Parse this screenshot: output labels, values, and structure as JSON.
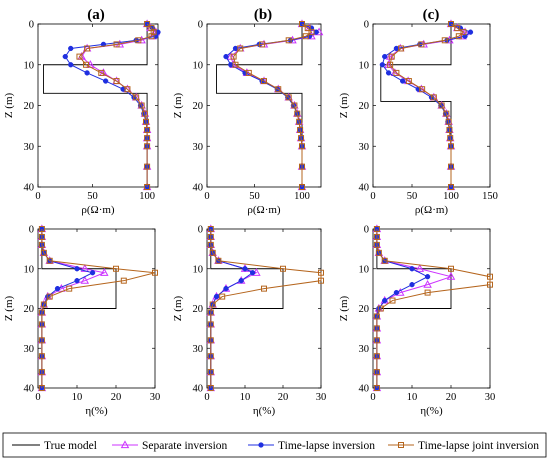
{
  "figure": {
    "panel_titles": [
      "(a)",
      "(b)",
      "(c)"
    ],
    "legend": [
      {
        "label": "True model",
        "color": "#000000",
        "marker": "none"
      },
      {
        "label": "Separate inversion",
        "color": "#cc33ff",
        "marker": "triangle"
      },
      {
        "label": "Time-lapse inversion",
        "color": "#1f2fe0",
        "marker": "dot"
      },
      {
        "label": "Time-lapse joint inversion",
        "color": "#b5651d",
        "marker": "square"
      }
    ]
  },
  "chart_data": [
    {
      "type": "line",
      "panel": "(a)",
      "row": "resistivity",
      "xlabel": "ρ(Ω·m)",
      "ylabel": "Z (m)",
      "xlim": [
        0,
        110
      ],
      "ylim": [
        0,
        40
      ],
      "y_reversed": true,
      "xticks": [
        0,
        50,
        100
      ],
      "yticks": [
        0,
        10,
        20,
        30,
        40
      ],
      "series": [
        {
          "name": "True model",
          "color": "#000000",
          "marker": "none",
          "x": [
            100,
            100,
            100,
            100,
            5,
            5,
            100,
            100,
            100
          ],
          "y": [
            0,
            5,
            9,
            10,
            10,
            17,
            17,
            20,
            40
          ]
        },
        {
          "name": "Separate inversion",
          "color": "#cc33ff",
          "marker": "triangle",
          "x": [
            100,
            103,
            108,
            105,
            95,
            75,
            45,
            40,
            48,
            60,
            72,
            82,
            90,
            95,
            98,
            99,
            100,
            100,
            100,
            100,
            100
          ],
          "y": [
            0,
            1,
            2,
            3,
            4,
            5,
            6,
            8,
            10,
            12,
            14,
            16,
            18,
            20,
            22,
            24,
            26,
            28,
            30,
            35,
            40
          ]
        },
        {
          "name": "Time-lapse inversion",
          "color": "#1f2fe0",
          "marker": "dot",
          "x": [
            100,
            105,
            110,
            108,
            90,
            60,
            30,
            25,
            30,
            45,
            62,
            78,
            88,
            94,
            97,
            99,
            100,
            100,
            100,
            100,
            100
          ],
          "y": [
            0,
            1,
            2,
            3,
            4,
            5,
            6,
            8,
            10,
            12,
            14,
            16,
            18,
            20,
            22,
            24,
            26,
            28,
            30,
            35,
            40
          ]
        },
        {
          "name": "Time-lapse joint inversion",
          "color": "#b5651d",
          "marker": "square",
          "x": [
            100,
            104,
            106,
            104,
            92,
            72,
            45,
            38,
            44,
            58,
            72,
            82,
            90,
            95,
            98,
            99,
            100,
            100,
            100,
            100,
            100
          ],
          "y": [
            0,
            1,
            2,
            3,
            4,
            5,
            6,
            8,
            10,
            12,
            14,
            16,
            18,
            20,
            22,
            24,
            26,
            28,
            30,
            35,
            40
          ]
        }
      ]
    },
    {
      "type": "line",
      "panel": "(b)",
      "row": "resistivity",
      "xlabel": "ρ(Ω·m)",
      "ylabel": "Z (m)",
      "xlim": [
        0,
        120
      ],
      "ylim": [
        0,
        40
      ],
      "y_reversed": true,
      "xticks": [
        0,
        50,
        100
      ],
      "yticks": [
        0,
        10,
        20,
        30,
        40
      ],
      "series": [
        {
          "name": "True model",
          "color": "#000000",
          "marker": "none",
          "x": [
            100,
            100,
            100,
            100,
            10,
            10,
            100,
            100,
            100
          ],
          "y": [
            0,
            5,
            9,
            10,
            10,
            17,
            17,
            20,
            40
          ]
        },
        {
          "name": "Separate inversion",
          "color": "#cc33ff",
          "marker": "triangle",
          "x": [
            100,
            108,
            118,
            110,
            90,
            60,
            35,
            25,
            28,
            42,
            60,
            75,
            86,
            92,
            95,
            97,
            98,
            99,
            100,
            100,
            100
          ],
          "y": [
            0,
            1,
            2,
            3,
            4,
            5,
            6,
            8,
            10,
            12,
            14,
            16,
            18,
            20,
            22,
            24,
            26,
            28,
            30,
            35,
            40
          ]
        },
        {
          "name": "Time-lapse inversion",
          "color": "#1f2fe0",
          "marker": "dot",
          "x": [
            100,
            110,
            115,
            108,
            88,
            55,
            30,
            20,
            25,
            40,
            58,
            74,
            85,
            91,
            95,
            97,
            98,
            99,
            100,
            100,
            100
          ],
          "y": [
            0,
            1,
            2,
            3,
            4,
            5,
            6,
            8,
            10,
            12,
            14,
            16,
            18,
            20,
            22,
            24,
            26,
            28,
            30,
            35,
            40
          ]
        },
        {
          "name": "Time-lapse joint inversion",
          "color": "#b5651d",
          "marker": "square",
          "x": [
            100,
            106,
            110,
            104,
            86,
            58,
            35,
            28,
            30,
            44,
            60,
            75,
            86,
            92,
            95,
            97,
            98,
            99,
            100,
            100,
            100
          ],
          "y": [
            0,
            1,
            2,
            3,
            4,
            5,
            6,
            8,
            10,
            12,
            14,
            16,
            18,
            20,
            22,
            24,
            26,
            28,
            30,
            35,
            40
          ]
        }
      ]
    },
    {
      "type": "line",
      "panel": "(c)",
      "row": "resistivity",
      "xlabel": "ρ(Ω·m)",
      "ylabel": "Z (m)",
      "xlim": [
        0,
        150
      ],
      "ylim": [
        0,
        40
      ],
      "y_reversed": true,
      "xticks": [
        0,
        50,
        100,
        150
      ],
      "yticks": [
        0,
        10,
        20,
        30,
        40
      ],
      "series": [
        {
          "name": "True model",
          "color": "#000000",
          "marker": "none",
          "x": [
            100,
            100,
            100,
            100,
            10,
            10,
            100,
            100,
            100
          ],
          "y": [
            0,
            5,
            9,
            10,
            10,
            19,
            19,
            21,
            40
          ]
        },
        {
          "name": "Separate inversion",
          "color": "#cc33ff",
          "marker": "triangle",
          "x": [
            100,
            108,
            118,
            115,
            98,
            65,
            35,
            22,
            20,
            28,
            45,
            62,
            78,
            88,
            94,
            97,
            98,
            99,
            100,
            100,
            100
          ],
          "y": [
            0,
            1,
            2,
            3,
            4,
            5,
            6,
            8,
            10,
            12,
            14,
            16,
            18,
            20,
            22,
            24,
            26,
            28,
            30,
            35,
            40
          ]
        },
        {
          "name": "Time-lapse inversion",
          "color": "#1f2fe0",
          "marker": "dot",
          "x": [
            100,
            112,
            125,
            118,
            95,
            60,
            30,
            15,
            12,
            20,
            38,
            58,
            75,
            87,
            93,
            96,
            98,
            99,
            100,
            100,
            100
          ],
          "y": [
            0,
            1,
            2,
            3,
            4,
            5,
            6,
            8,
            10,
            12,
            14,
            16,
            18,
            20,
            22,
            24,
            26,
            28,
            30,
            35,
            40
          ]
        },
        {
          "name": "Time-lapse joint inversion",
          "color": "#b5651d",
          "marker": "square",
          "x": [
            100,
            108,
            116,
            110,
            92,
            62,
            36,
            24,
            22,
            30,
            46,
            63,
            78,
            88,
            94,
            97,
            98,
            99,
            100,
            100,
            100
          ],
          "y": [
            0,
            1,
            2,
            3,
            4,
            5,
            6,
            8,
            10,
            12,
            14,
            16,
            18,
            20,
            22,
            24,
            26,
            28,
            30,
            35,
            40
          ]
        }
      ]
    },
    {
      "type": "line",
      "panel": "(a)",
      "row": "chargeability",
      "xlabel": "η(%)",
      "ylabel": "Z (m)",
      "xlim": [
        0,
        30
      ],
      "ylim": [
        0,
        40
      ],
      "y_reversed": true,
      "xticks": [
        0,
        10,
        20,
        30
      ],
      "yticks": [
        0,
        10,
        20,
        30,
        40
      ],
      "series": [
        {
          "name": "True model",
          "color": "#000000",
          "marker": "none",
          "x": [
            1,
            1,
            1,
            20,
            20,
            1,
            1
          ],
          "y": [
            0,
            8,
            10,
            10,
            20,
            20,
            40
          ]
        },
        {
          "name": "Separate inversion",
          "color": "#cc33ff",
          "marker": "triangle",
          "x": [
            1,
            1,
            1,
            1.5,
            3,
            12,
            17,
            12,
            6,
            2.5,
            1.5,
            1,
            1,
            1,
            1,
            1,
            1
          ],
          "y": [
            0,
            2,
            4,
            6,
            8,
            10,
            11,
            13,
            15,
            17,
            19,
            21,
            24,
            28,
            32,
            36,
            40
          ]
        },
        {
          "name": "Time-lapse inversion",
          "color": "#1f2fe0",
          "marker": "dot",
          "x": [
            1,
            1,
            1,
            1.5,
            3,
            10,
            14,
            10,
            5,
            2.5,
            1.5,
            1,
            1,
            1,
            1,
            1,
            1
          ],
          "y": [
            0,
            2,
            4,
            6,
            8,
            10,
            11,
            13,
            15,
            17,
            19,
            21,
            24,
            28,
            32,
            36,
            40
          ]
        },
        {
          "name": "Time-lapse joint inversion",
          "color": "#b5651d",
          "marker": "square",
          "x": [
            1,
            1,
            1,
            1.5,
            3,
            20,
            30,
            22,
            8,
            3,
            1.5,
            1,
            1,
            1,
            1,
            1,
            1
          ],
          "y": [
            0,
            2,
            4,
            6,
            8,
            10,
            11,
            13,
            15,
            17,
            19,
            21,
            24,
            28,
            32,
            36,
            40
          ]
        }
      ]
    },
    {
      "type": "line",
      "panel": "(b)",
      "row": "chargeability",
      "xlabel": "η(%)",
      "ylabel": "Z (m)",
      "xlim": [
        0,
        30
      ],
      "ylim": [
        0,
        40
      ],
      "y_reversed": true,
      "xticks": [
        0,
        10,
        20,
        30
      ],
      "yticks": [
        0,
        10,
        20,
        30,
        40
      ],
      "series": [
        {
          "name": "True model",
          "color": "#000000",
          "marker": "none",
          "x": [
            1,
            1,
            1,
            20,
            20,
            1,
            1
          ],
          "y": [
            0,
            8,
            10,
            10,
            20,
            20,
            40
          ]
        },
        {
          "name": "Separate inversion",
          "color": "#cc33ff",
          "marker": "triangle",
          "x": [
            1,
            1,
            1,
            1.5,
            3,
            10,
            13,
            9,
            5,
            2.5,
            1.5,
            1,
            1,
            1,
            1,
            1,
            1
          ],
          "y": [
            0,
            2,
            4,
            6,
            8,
            10,
            11,
            13,
            15,
            17,
            19,
            21,
            24,
            28,
            32,
            36,
            40
          ]
        },
        {
          "name": "Time-lapse inversion",
          "color": "#1f2fe0",
          "marker": "dot",
          "x": [
            1,
            1,
            1,
            1.5,
            3,
            10,
            12,
            9,
            5,
            2.5,
            1.5,
            1,
            1,
            1,
            1,
            1,
            1
          ],
          "y": [
            0,
            2,
            4,
            6,
            8,
            10,
            11,
            13,
            15,
            17,
            19,
            21,
            24,
            28,
            32,
            36,
            40
          ]
        },
        {
          "name": "Time-lapse joint inversion",
          "color": "#b5651d",
          "marker": "square",
          "x": [
            1,
            1,
            1,
            1.5,
            3,
            20,
            30,
            30,
            15,
            4,
            1.5,
            1,
            1,
            1,
            1,
            1,
            1
          ],
          "y": [
            0,
            2,
            4,
            6,
            8,
            10,
            11,
            13,
            15,
            17,
            19,
            21,
            24,
            28,
            32,
            36,
            40
          ]
        }
      ]
    },
    {
      "type": "line",
      "panel": "(c)",
      "row": "chargeability",
      "xlabel": "η(%)",
      "ylabel": "Z (m)",
      "xlim": [
        0,
        30
      ],
      "ylim": [
        0,
        40
      ],
      "y_reversed": true,
      "xticks": [
        0,
        10,
        20,
        30
      ],
      "yticks": [
        0,
        10,
        20,
        30,
        40
      ],
      "series": [
        {
          "name": "True model",
          "color": "#000000",
          "marker": "none",
          "x": [
            1,
            1,
            1,
            20,
            20,
            1,
            1
          ],
          "y": [
            0,
            8,
            10,
            10,
            20,
            20,
            40
          ]
        },
        {
          "name": "Separate inversion",
          "color": "#cc33ff",
          "marker": "triangle",
          "x": [
            1,
            1,
            1,
            1.5,
            3,
            12,
            20,
            14,
            7,
            3,
            1.5,
            1,
            1,
            1,
            1,
            1,
            1
          ],
          "y": [
            0,
            2,
            4,
            6,
            8,
            10,
            12,
            14,
            16,
            18,
            20,
            22,
            25,
            28,
            32,
            36,
            40
          ]
        },
        {
          "name": "Time-lapse inversion",
          "color": "#1f2fe0",
          "marker": "dot",
          "x": [
            1,
            1,
            1,
            1.5,
            3,
            10,
            14,
            10,
            6,
            3,
            1.5,
            1,
            1,
            1,
            1,
            1,
            1
          ],
          "y": [
            0,
            2,
            4,
            6,
            8,
            10,
            12,
            14,
            16,
            18,
            20,
            22,
            25,
            28,
            32,
            36,
            40
          ]
        },
        {
          "name": "Time-lapse joint inversion",
          "color": "#b5651d",
          "marker": "square",
          "x": [
            1,
            1,
            1,
            1.5,
            3,
            20,
            30,
            30,
            14,
            5,
            2,
            1,
            1,
            1,
            1,
            1,
            1
          ],
          "y": [
            0,
            2,
            4,
            6,
            8,
            10,
            12,
            14,
            16,
            18,
            20,
            22,
            25,
            28,
            32,
            36,
            40
          ]
        }
      ]
    }
  ]
}
